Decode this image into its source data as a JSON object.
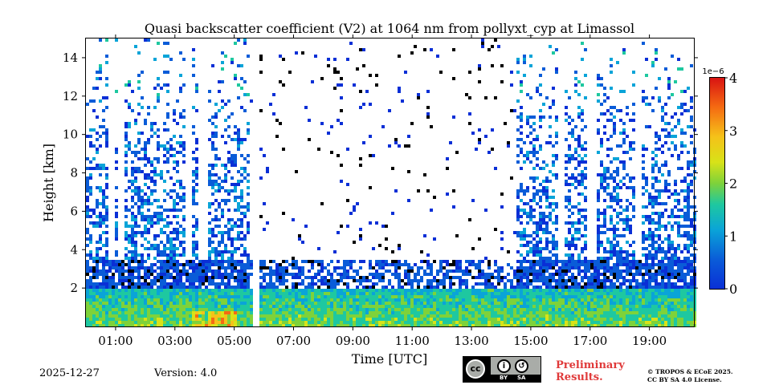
{
  "chart_data": {
    "type": "heatmap",
    "title": "Quasi backscatter coefficient (V2) at 1064 nm from pollyxt_cyp at Limassol",
    "xlabel": "Time [UTC]",
    "ylabel": "Height [km]",
    "xlim_hours": [
      0.0,
      20.5
    ],
    "ylim_km": [
      0.0,
      15.0
    ],
    "x_ticks": [
      "01:00",
      "03:00",
      "05:00",
      "07:00",
      "09:00",
      "11:00",
      "13:00",
      "15:00",
      "17:00",
      "19:00"
    ],
    "x_tick_hours": [
      1,
      3,
      5,
      7,
      9,
      11,
      13,
      15,
      17,
      19
    ],
    "y_ticks": [
      "2",
      "4",
      "6",
      "8",
      "10",
      "12",
      "14"
    ],
    "y_tick_values": [
      2,
      4,
      6,
      8,
      10,
      12,
      14
    ],
    "colorbar": {
      "scale_label": "1e−6",
      "ticks": [
        "0",
        "1",
        "2",
        "3",
        "4"
      ],
      "tick_values": [
        0,
        1,
        2,
        3,
        4
      ],
      "range": [
        0,
        4
      ],
      "colormap": "jet"
    },
    "data_gap_hours": [
      [
        5.55,
        5.75
      ]
    ],
    "features": {
      "boundary_layer_top_km": 2.0,
      "dense_aerosol_top_km": 3.5,
      "high_intensity_near_surface_hours": [
        3.5,
        5.0
      ],
      "high_intensity_value": 4.0,
      "clear_columns_hours": [
        0.8,
        1.1,
        3.4,
        3.9,
        11.9,
        16.0,
        17.0,
        18.6
      ]
    }
  },
  "footer": {
    "date": "2025-12-27",
    "version": "Version: 4.0",
    "preliminary_line1": "Preliminary",
    "preliminary_line2": "Results.",
    "copyright_line1": "© TROPOS & ECoE 2025.",
    "copyright_line2": "CC BY SA 4.0 License.",
    "cc_logo": {
      "cc_text": "cc",
      "by_text": "BY",
      "sa_text": "SA"
    }
  }
}
